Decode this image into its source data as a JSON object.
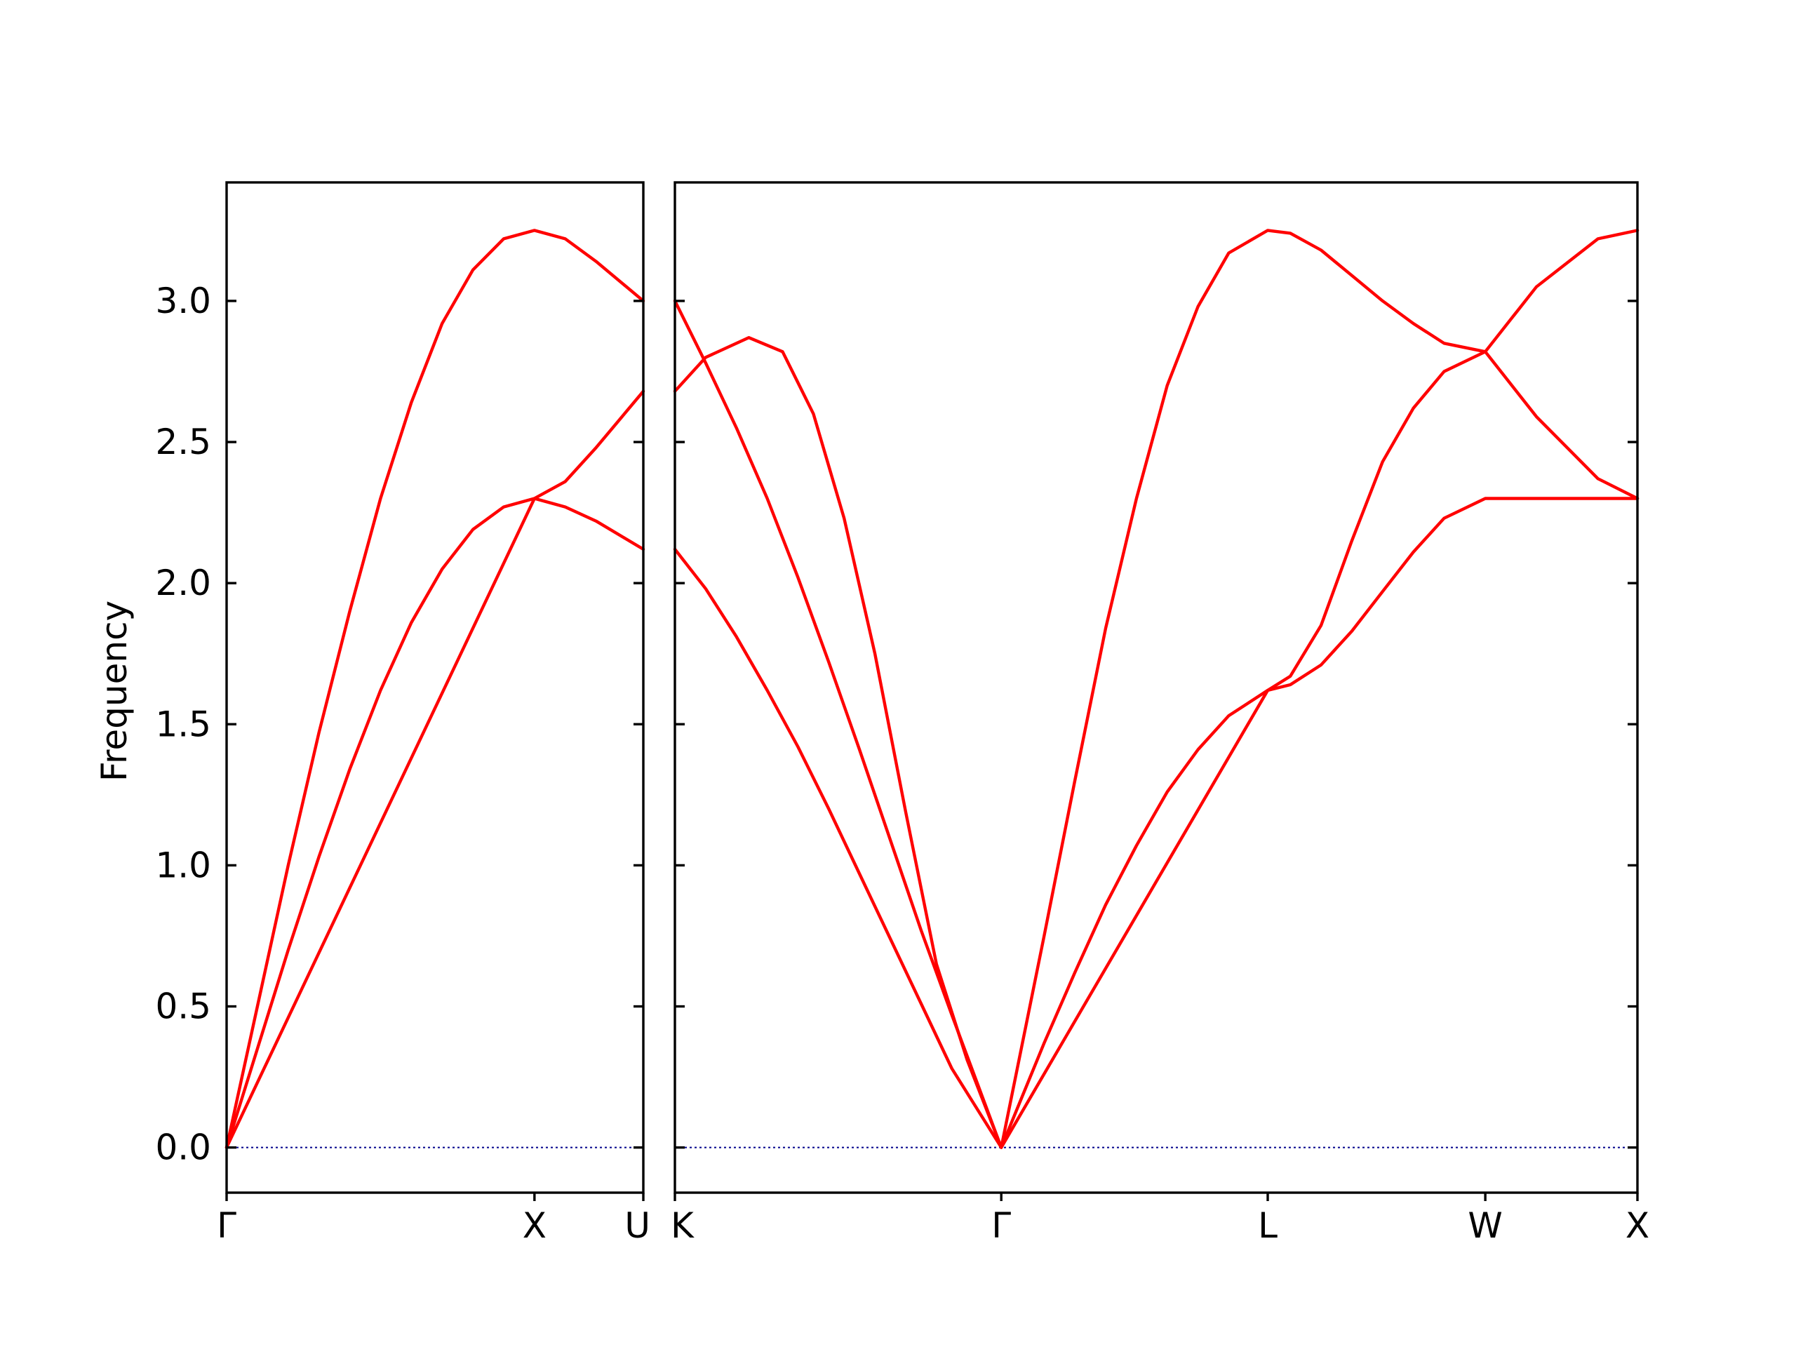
{
  "chart_data": {
    "type": "line",
    "title": "",
    "ylabel": "Frequency",
    "ylim": [
      -0.16,
      3.42
    ],
    "yticks": [
      "0.0",
      "0.5",
      "1.0",
      "1.5",
      "2.0",
      "2.5",
      "3.0"
    ],
    "grid": false,
    "legend": "none",
    "band_color": "#ff0000",
    "zero_line_color": "#00008b",
    "panels": [
      {
        "name": "path-1",
        "x_range": [
          0,
          1.3536
        ],
        "x_ticks": [
          {
            "x": 0,
            "label": "Γ"
          },
          {
            "x": 1.0,
            "label": "X"
          },
          {
            "x": 1.3536,
            "label": "U"
          }
        ],
        "bands": [
          {
            "name": "band-1",
            "points": [
              [
                0,
                0
              ],
              [
                0.1,
                0.35
              ],
              [
                0.2,
                0.7
              ],
              [
                0.3,
                1.03
              ],
              [
                0.4,
                1.34
              ],
              [
                0.5,
                1.62
              ],
              [
                0.6,
                1.86
              ],
              [
                0.7,
                2.05
              ],
              [
                0.8,
                2.19
              ],
              [
                0.9,
                2.27
              ],
              [
                1.0,
                2.3
              ],
              [
                1.1,
                2.27
              ],
              [
                1.2,
                2.22
              ],
              [
                1.3536,
                2.12
              ]
            ]
          },
          {
            "name": "band-2",
            "points": [
              [
                0,
                0
              ],
              [
                1.0,
                2.3
              ],
              [
                1.1,
                2.36
              ],
              [
                1.2,
                2.48
              ],
              [
                1.3536,
                2.68
              ]
            ]
          },
          {
            "name": "band-3",
            "points": [
              [
                0,
                0
              ],
              [
                0.1,
                0.5
              ],
              [
                0.2,
                1.0
              ],
              [
                0.3,
                1.47
              ],
              [
                0.4,
                1.9
              ],
              [
                0.5,
                2.3
              ],
              [
                0.6,
                2.64
              ],
              [
                0.7,
                2.92
              ],
              [
                0.8,
                3.11
              ],
              [
                0.9,
                3.22
              ],
              [
                1.0,
                3.25
              ],
              [
                1.1,
                3.22
              ],
              [
                1.2,
                3.14
              ],
              [
                1.3536,
                3.0
              ]
            ]
          }
        ]
      },
      {
        "name": "path-2",
        "x_range": [
          0,
          3.1283
        ],
        "x_ticks": [
          {
            "x": 0,
            "label": "K"
          },
          {
            "x": 1.0607,
            "label": "Γ"
          },
          {
            "x": 1.9267,
            "label": "L"
          },
          {
            "x": 2.6338,
            "label": "W"
          },
          {
            "x": 3.1283,
            "label": "X"
          }
        ],
        "bands": [
          {
            "name": "band-1",
            "points": [
              [
                0,
                2.12
              ],
              [
                0.1,
                1.98
              ],
              [
                0.2,
                1.81
              ],
              [
                0.3,
                1.62
              ],
              [
                0.4,
                1.42
              ],
              [
                0.5,
                1.2
              ],
              [
                0.6,
                0.97
              ],
              [
                0.7,
                0.74
              ],
              [
                0.8,
                0.51
              ],
              [
                0.9,
                0.28
              ],
              [
                1.0607,
                0.0
              ],
              [
                1.2,
                0.37
              ],
              [
                1.3,
                0.62
              ],
              [
                1.4,
                0.86
              ],
              [
                1.5,
                1.07
              ],
              [
                1.6,
                1.26
              ],
              [
                1.7,
                1.41
              ],
              [
                1.8,
                1.53
              ],
              [
                1.9267,
                1.62
              ],
              [
                2.0,
                1.64
              ],
              [
                2.1,
                1.71
              ],
              [
                2.2,
                1.83
              ],
              [
                2.3,
                1.97
              ],
              [
                2.4,
                2.11
              ],
              [
                2.5,
                2.23
              ],
              [
                2.6338,
                2.3
              ],
              [
                3.1283,
                2.3
              ]
            ]
          },
          {
            "name": "band-2",
            "points": [
              [
                0,
                3.0
              ],
              [
                0.1,
                2.78
              ],
              [
                0.2,
                2.55
              ],
              [
                0.3,
                2.3
              ],
              [
                0.4,
                2.02
              ],
              [
                0.5,
                1.72
              ],
              [
                0.6,
                1.41
              ],
              [
                0.7,
                1.09
              ],
              [
                0.8,
                0.77
              ],
              [
                0.9,
                0.47
              ],
              [
                1.0607,
                0.0
              ],
              [
                1.2,
                0.75
              ],
              [
                1.3,
                1.3
              ],
              [
                1.4,
                1.84
              ],
              [
                1.5,
                2.3
              ],
              [
                1.6,
                2.7
              ],
              [
                1.7,
                2.98
              ],
              [
                1.8,
                3.17
              ],
              [
                1.9267,
                3.25
              ],
              [
                2.0,
                3.24
              ],
              [
                2.1,
                3.18
              ],
              [
                2.2,
                3.09
              ],
              [
                2.3,
                3.0
              ],
              [
                2.4,
                2.92
              ],
              [
                2.5,
                2.85
              ],
              [
                2.6338,
                2.82
              ],
              [
                2.8,
                2.59
              ],
              [
                3.0,
                2.37
              ],
              [
                3.1283,
                2.3
              ]
            ]
          },
          {
            "name": "band-3",
            "points": [
              [
                0,
                2.68
              ],
              [
                0.1,
                2.8
              ],
              [
                0.24,
                2.87
              ],
              [
                0.35,
                2.82
              ],
              [
                0.45,
                2.6
              ],
              [
                0.55,
                2.23
              ],
              [
                0.65,
                1.75
              ],
              [
                0.75,
                1.19
              ],
              [
                0.85,
                0.65
              ],
              [
                0.95,
                0.31
              ],
              [
                1.0607,
                0.0
              ],
              [
                1.9267,
                1.62
              ],
              [
                2.0,
                1.67
              ],
              [
                2.1,
                1.85
              ],
              [
                2.2,
                2.15
              ],
              [
                2.3,
                2.43
              ],
              [
                2.4,
                2.62
              ],
              [
                2.5,
                2.75
              ],
              [
                2.6338,
                2.82
              ],
              [
                2.8,
                3.05
              ],
              [
                3.0,
                3.22
              ],
              [
                3.1283,
                3.25
              ]
            ]
          }
        ]
      }
    ]
  }
}
